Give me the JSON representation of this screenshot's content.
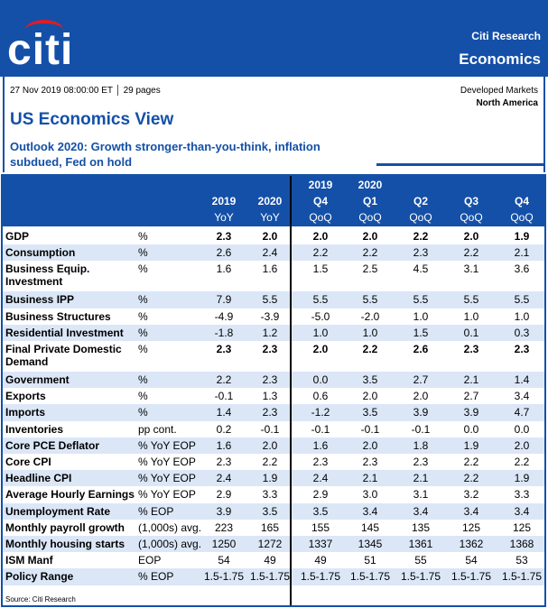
{
  "header": {
    "brand": "citi",
    "brand_color": "#1450a8",
    "top_right_line1": "Citi Research",
    "top_right_line2": "Economics"
  },
  "doc": {
    "date_pages": "27 Nov 2019 08:00:00 ET │ 29 pages",
    "region1": "Developed Markets",
    "region2": "North America",
    "title": "US Economics View",
    "subtitle": "Outlook 2020: Growth stronger-than-you-think, inflation subdued, Fed on hold"
  },
  "table": {
    "columns": [
      {
        "l1": "",
        "l2": "2019",
        "l3": "YoY"
      },
      {
        "l1": "",
        "l2": "2020",
        "l3": "YoY"
      },
      {
        "l1": "2019",
        "l2": "Q4",
        "l3": "QoQ"
      },
      {
        "l1": "2020",
        "l2": "Q1",
        "l3": "QoQ"
      },
      {
        "l1": "",
        "l2": "Q2",
        "l3": "QoQ"
      },
      {
        "l1": "",
        "l2": "Q3",
        "l3": "QoQ"
      },
      {
        "l1": "",
        "l2": "Q4",
        "l3": "QoQ"
      }
    ],
    "rows": [
      {
        "label": "GDP",
        "unit": "%",
        "values": [
          "2.3",
          "2.0",
          "2.0",
          "2.0",
          "2.2",
          "2.0",
          "1.9"
        ],
        "bold": true
      },
      {
        "label": "Consumption",
        "unit": "%",
        "values": [
          "2.6",
          "2.4",
          "2.2",
          "2.2",
          "2.3",
          "2.2",
          "2.1"
        ]
      },
      {
        "label": "Business Equip. Investment",
        "unit": "%",
        "values": [
          "1.6",
          "1.6",
          "1.5",
          "2.5",
          "4.5",
          "3.1",
          "3.6"
        ],
        "tall": true
      },
      {
        "label": "Business IPP",
        "unit": "%",
        "values": [
          "7.9",
          "5.5",
          "5.5",
          "5.5",
          "5.5",
          "5.5",
          "5.5"
        ]
      },
      {
        "label": "Business Structures",
        "unit": "%",
        "values": [
          "-4.9",
          "-3.9",
          "-5.0",
          "-2.0",
          "1.0",
          "1.0",
          "1.0"
        ]
      },
      {
        "label": "Residential Investment",
        "unit": "%",
        "values": [
          "-1.8",
          "1.2",
          "1.0",
          "1.0",
          "1.5",
          "0.1",
          "0.3"
        ]
      },
      {
        "label": "Final Private Domestic Demand",
        "unit": "%",
        "values": [
          "2.3",
          "2.3",
          "2.0",
          "2.2",
          "2.6",
          "2.3",
          "2.3"
        ],
        "bold": true,
        "tall": true
      },
      {
        "label": "Government",
        "unit": "%",
        "values": [
          "2.2",
          "2.3",
          "0.0",
          "3.5",
          "2.7",
          "2.1",
          "1.4"
        ]
      },
      {
        "label": "Exports",
        "unit": "%",
        "values": [
          "-0.1",
          "1.3",
          "0.6",
          "2.0",
          "2.0",
          "2.7",
          "3.4"
        ]
      },
      {
        "label": "Imports",
        "unit": "%",
        "values": [
          "1.4",
          "2.3",
          "-1.2",
          "3.5",
          "3.9",
          "3.9",
          "4.7"
        ]
      },
      {
        "label": "Inventories",
        "unit": "pp cont.",
        "values": [
          "0.2",
          "-0.1",
          "-0.1",
          "-0.1",
          "-0.1",
          "0.0",
          "0.0"
        ]
      },
      {
        "label": "Core PCE Deflator",
        "unit": "% YoY EOP",
        "values": [
          "1.6",
          "2.0",
          "1.6",
          "2.0",
          "1.8",
          "1.9",
          "2.0"
        ]
      },
      {
        "label": "Core CPI",
        "unit": "% YoY EOP",
        "values": [
          "2.3",
          "2.2",
          "2.3",
          "2.3",
          "2.3",
          "2.2",
          "2.2"
        ]
      },
      {
        "label": "Headline CPI",
        "unit": "% YoY EOP",
        "values": [
          "2.4",
          "1.9",
          "2.4",
          "2.1",
          "2.1",
          "2.2",
          "1.9"
        ]
      },
      {
        "label": "Average Hourly Earnings",
        "unit": "% YoY EOP",
        "values": [
          "2.9",
          "3.3",
          "2.9",
          "3.0",
          "3.1",
          "3.2",
          "3.3"
        ]
      },
      {
        "label": "Unemployment Rate",
        "unit": "% EOP",
        "values": [
          "3.9",
          "3.5",
          "3.5",
          "3.4",
          "3.4",
          "3.4",
          "3.4"
        ]
      },
      {
        "label": "Monthly payroll growth",
        "unit": "(1,000s) avg.",
        "values": [
          "223",
          "165",
          "155",
          "145",
          "135",
          "125",
          "125"
        ]
      },
      {
        "label": "Monthly housing starts",
        "unit": "(1,000s) avg.",
        "values": [
          "1250",
          "1272",
          "1337",
          "1345",
          "1361",
          "1362",
          "1368"
        ]
      },
      {
        "label": "ISM Manf",
        "unit": "EOP",
        "values": [
          "54",
          "49",
          "49",
          "51",
          "55",
          "54",
          "53"
        ]
      },
      {
        "label": "Policy Range",
        "unit": "% EOP",
        "values": [
          "1.5-1.75",
          "1.5-1.75",
          "1.5-1.75",
          "1.5-1.75",
          "1.5-1.75",
          "1.5-1.75",
          "1.5-1.75"
        ]
      }
    ],
    "source": "Source: Citi Research"
  }
}
